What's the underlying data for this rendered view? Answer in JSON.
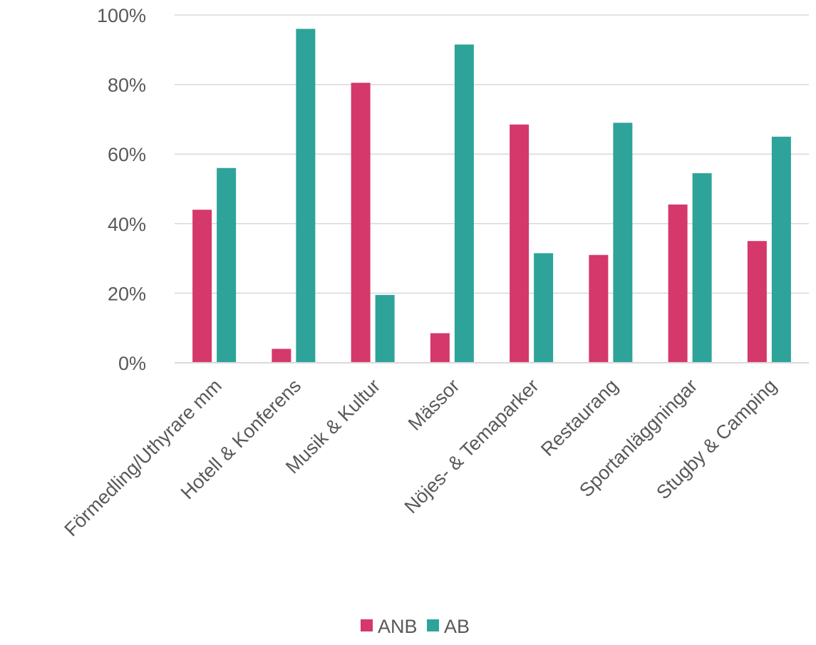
{
  "chart_data": {
    "type": "bar",
    "categories": [
      "Förmedling/Uthyrare mm",
      "Hotell & Konferens",
      "Musik & Kultur",
      "Mässor",
      "Nöjes- & Temaparker",
      "Restaurang",
      "Sportanläggningar",
      "Stugby & Camping"
    ],
    "series": [
      {
        "name": "ANB",
        "color": "#d5386a",
        "values": [
          44,
          4,
          80.5,
          8.5,
          68.5,
          31,
          45.5,
          35
        ]
      },
      {
        "name": "AB",
        "color": "#2da39a",
        "values": [
          56,
          96,
          19.5,
          91.5,
          31.5,
          69,
          54.5,
          65
        ]
      }
    ],
    "y_ticks": [
      "0%",
      "20%",
      "40%",
      "60%",
      "80%",
      "100%"
    ],
    "ylim": [
      0,
      100
    ],
    "grid": true,
    "legend_position": "bottom"
  }
}
